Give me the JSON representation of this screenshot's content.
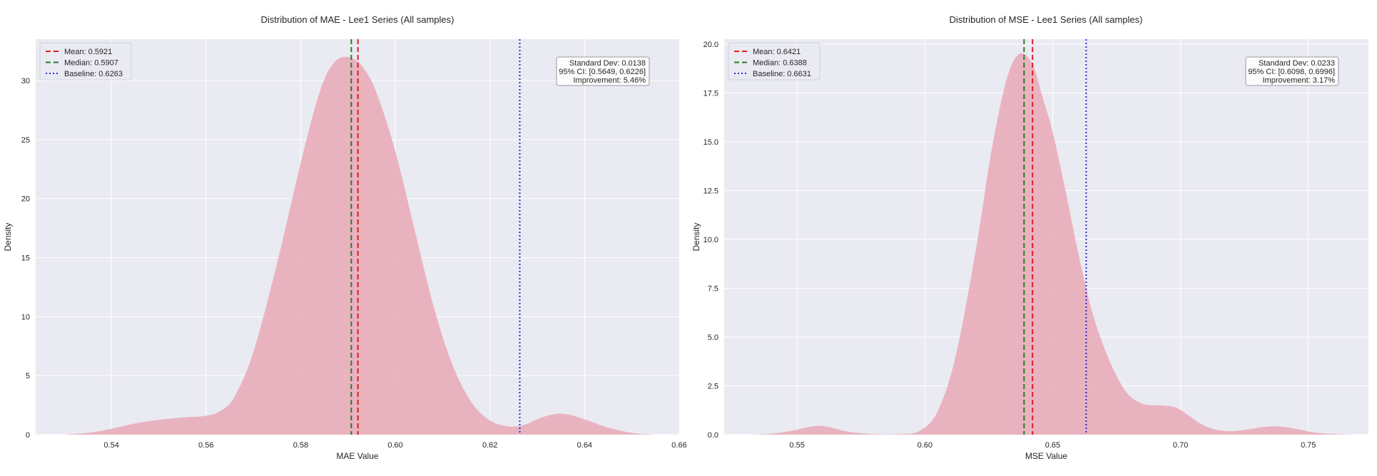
{
  "chart_data": [
    {
      "type": "area",
      "title": "Distribution of MAE - Lee1 Series (All samples)",
      "xlabel": "MAE Value",
      "ylabel": "Density",
      "xlim": [
        0.524,
        0.66
      ],
      "ylim": [
        0,
        33.5
      ],
      "xticks": [
        0.54,
        0.56,
        0.58,
        0.6,
        0.62,
        0.64,
        0.66
      ],
      "xtick_labels": [
        "0.54",
        "0.56",
        "0.58",
        "0.60",
        "0.62",
        "0.64",
        "0.66"
      ],
      "yticks": [
        0,
        5,
        10,
        15,
        20,
        25,
        30
      ],
      "ytick_labels": [
        "0",
        "5",
        "10",
        "15",
        "20",
        "25",
        "30"
      ],
      "grid": true,
      "legend_position": "top-left",
      "fill_color": "#e8a9b6",
      "density": {
        "x": [
          0.53,
          0.535,
          0.54,
          0.545,
          0.55,
          0.555,
          0.56,
          0.563,
          0.566,
          0.57,
          0.575,
          0.58,
          0.584,
          0.587,
          0.59,
          0.593,
          0.596,
          0.6,
          0.604,
          0.608,
          0.612,
          0.616,
          0.62,
          0.624,
          0.627,
          0.63,
          0.633,
          0.636,
          0.64,
          0.645,
          0.65,
          0.655
        ],
        "y": [
          0.0,
          0.15,
          0.5,
          0.95,
          1.25,
          1.45,
          1.6,
          2.0,
          3.2,
          7.0,
          14.5,
          23.0,
          29.0,
          31.5,
          32.0,
          31.2,
          29.0,
          24.0,
          17.5,
          11.0,
          6.0,
          2.8,
          1.2,
          0.7,
          0.8,
          1.3,
          1.7,
          1.75,
          1.3,
          0.6,
          0.15,
          0.0
        ]
      },
      "reference_lines": [
        {
          "label": "Mean: 0.5921",
          "value": 0.5921,
          "color": "#e41a1c",
          "style": "dashed"
        },
        {
          "label": "Median: 0.5907",
          "value": 0.5907,
          "color": "#2a7a2a",
          "style": "dashed"
        },
        {
          "label": "Baseline: 0.6263",
          "value": 0.6263,
          "color": "#2b2bd9",
          "style": "dotted"
        }
      ],
      "stats": [
        "Standard Dev: 0.0138",
        "95% CI: [0.5649, 0.6226]",
        "Improvement: 5.46%"
      ]
    },
    {
      "type": "area",
      "title": "Distribution of MSE - Lee1 Series (All samples)",
      "xlabel": "MSE Value",
      "ylabel": "Density",
      "xlim": [
        0.5215,
        0.7735
      ],
      "ylim": [
        0,
        20.25
      ],
      "xticks": [
        0.55,
        0.6,
        0.65,
        0.7,
        0.75
      ],
      "xtick_labels": [
        "0.55",
        "0.60",
        "0.65",
        "0.70",
        "0.75"
      ],
      "yticks": [
        0,
        2.5,
        5,
        7.5,
        10,
        12.5,
        15,
        17.5,
        20
      ],
      "ytick_labels": [
        "0.0",
        "2.5",
        "5.0",
        "7.5",
        "10.0",
        "12.5",
        "15.0",
        "17.5",
        "20.0"
      ],
      "grid": true,
      "legend_position": "top-left",
      "fill_color": "#e8a9b6",
      "density": {
        "x": [
          0.532,
          0.54,
          0.548,
          0.553,
          0.558,
          0.563,
          0.57,
          0.58,
          0.59,
          0.598,
          0.605,
          0.612,
          0.62,
          0.626,
          0.632,
          0.637,
          0.642,
          0.646,
          0.65,
          0.655,
          0.66,
          0.665,
          0.67,
          0.675,
          0.68,
          0.686,
          0.692,
          0.698,
          0.703,
          0.708,
          0.714,
          0.72,
          0.727,
          0.733,
          0.739,
          0.745,
          0.752,
          0.76,
          0.767
        ],
        "y": [
          0.0,
          0.05,
          0.2,
          0.35,
          0.45,
          0.38,
          0.15,
          0.03,
          0.03,
          0.2,
          1.2,
          4.0,
          9.5,
          14.5,
          18.2,
          19.5,
          19.0,
          17.3,
          15.5,
          12.5,
          9.3,
          6.5,
          4.5,
          3.0,
          2.0,
          1.55,
          1.5,
          1.4,
          1.0,
          0.55,
          0.25,
          0.18,
          0.28,
          0.4,
          0.42,
          0.3,
          0.12,
          0.03,
          0.0
        ]
      },
      "reference_lines": [
        {
          "label": "Mean: 0.6421",
          "value": 0.6421,
          "color": "#e41a1c",
          "style": "dashed"
        },
        {
          "label": "Median: 0.6388",
          "value": 0.6388,
          "color": "#2a7a2a",
          "style": "dashed"
        },
        {
          "label": "Baseline: 0.6631",
          "value": 0.6631,
          "color": "#2b2bd9",
          "style": "dotted"
        }
      ],
      "stats": [
        "Standard Dev: 0.0233",
        "95% CI: [0.6098, 0.6996]",
        "Improvement: 3.17%"
      ]
    }
  ]
}
